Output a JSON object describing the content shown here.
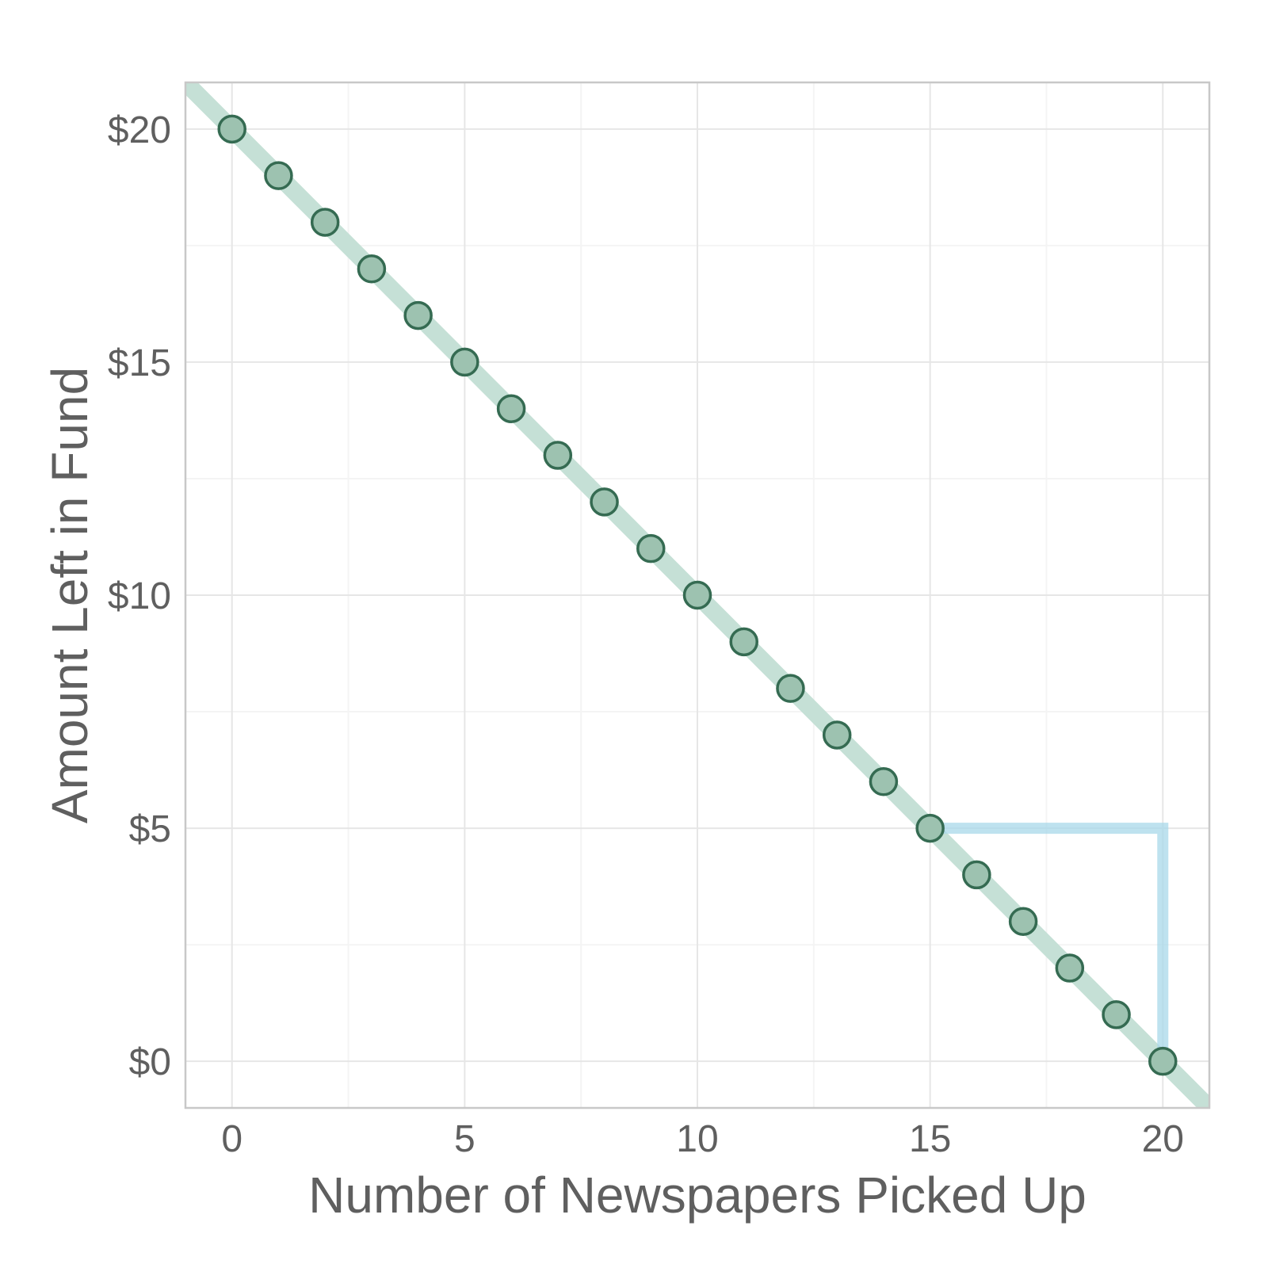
{
  "chart_data": {
    "type": "scatter",
    "title": "",
    "xlabel": "Number of Newspapers Picked Up",
    "ylabel": "Amount Left in Fund",
    "xlim": [
      -1,
      21
    ],
    "ylim": [
      -1,
      21
    ],
    "x_ticks": [
      0,
      5,
      10,
      15,
      20
    ],
    "x_tick_labels": [
      "0",
      "5",
      "10",
      "15",
      "20"
    ],
    "y_ticks": [
      0,
      5,
      10,
      15,
      20
    ],
    "y_tick_labels": [
      "$0",
      "$5",
      "$10",
      "$15",
      "$20"
    ],
    "grid": true,
    "legend": "none",
    "series": [
      {
        "kind": "points",
        "x": [
          0,
          1,
          2,
          3,
          4,
          5,
          6,
          7,
          8,
          9,
          10,
          11,
          12,
          13,
          14,
          15,
          16,
          17,
          18,
          19,
          20
        ],
        "y": [
          20,
          19,
          18,
          17,
          16,
          15,
          14,
          13,
          12,
          11,
          10,
          9,
          8,
          7,
          6,
          5,
          4,
          3,
          2,
          1,
          0
        ]
      }
    ],
    "trend_line": {
      "intercept": 20,
      "slope": -1
    },
    "slope_triangle": {
      "x": [
        15,
        20,
        20
      ],
      "y": [
        5,
        5,
        0
      ]
    },
    "colors": {
      "trend_line": "#c5e0d6",
      "point_fill": "#9dc2b0",
      "point_stroke": "#356b52",
      "triangle": "#a8d8ea",
      "grid_major": "#e6e6e6",
      "grid_minor": "#f4f4f4",
      "panel_border": "#c8c8c8"
    }
  }
}
